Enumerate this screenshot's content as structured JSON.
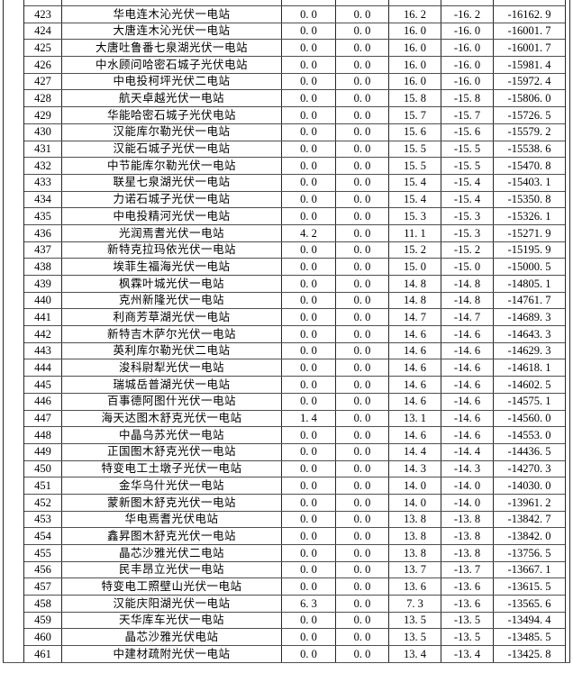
{
  "document": {
    "kind": "power-station-data-table-page",
    "visible_row_range": "423-461",
    "text_color": "#000000",
    "grid_line_color": "#3d3d3d",
    "background_color": "#ffffff"
  },
  "table": {
    "rows": [
      [
        "423",
        "华电连木沁光伏一电站",
        "0. 0",
        "0. 0",
        "16. 2",
        "-16. 2",
        "-16162. 9"
      ],
      [
        "424",
        "大唐连木沁光伏一电站",
        "0. 0",
        "0. 0",
        "16. 0",
        "-16. 0",
        "-16001. 7"
      ],
      [
        "425",
        "大唐吐鲁番七泉湖光伏一电站",
        "0. 0",
        "0. 0",
        "16. 0",
        "-16. 0",
        "-16001. 7"
      ],
      [
        "426",
        "中水顾问哈密石城子光伏电站",
        "0. 0",
        "0. 0",
        "16. 0",
        "-16. 0",
        "-15981. 4"
      ],
      [
        "427",
        "中电投柯坪光伏二电站",
        "0. 0",
        "0. 0",
        "16. 0",
        "-16. 0",
        "-15972. 4"
      ],
      [
        "428",
        "航天卓越光伏一电站",
        "0. 0",
        "0. 0",
        "15. 8",
        "-15. 8",
        "-15806. 0"
      ],
      [
        "429",
        "华能哈密石城子光伏电站",
        "0. 0",
        "0. 0",
        "15. 7",
        "-15. 7",
        "-15726. 5"
      ],
      [
        "430",
        "汉能库尔勒光伏一电站",
        "0. 0",
        "0. 0",
        "15. 6",
        "-15. 6",
        "-15579. 2"
      ],
      [
        "431",
        "汉能石城子光伏一电站",
        "0. 0",
        "0. 0",
        "15. 5",
        "-15. 5",
        "-15538. 6"
      ],
      [
        "432",
        "中节能库尔勒光伏一电站",
        "0. 0",
        "0. 0",
        "15. 5",
        "-15. 5",
        "-15470. 8"
      ],
      [
        "433",
        "联星七泉湖光伏一电站",
        "0. 0",
        "0. 0",
        "15. 4",
        "-15. 4",
        "-15403. 1"
      ],
      [
        "434",
        "力诺石城子光伏一电站",
        "0. 0",
        "0. 0",
        "15. 4",
        "-15. 4",
        "-15350. 8"
      ],
      [
        "435",
        "中电投精河光伏一电站",
        "0. 0",
        "0. 0",
        "15. 3",
        "-15. 3",
        "-15326. 1"
      ],
      [
        "436",
        "光润焉耆光伏一电站",
        "4. 2",
        "0. 0",
        "11. 1",
        "-15. 3",
        "-15271. 9"
      ],
      [
        "437",
        "新特克拉玛依光伏一电站",
        "0. 0",
        "0. 0",
        "15. 2",
        "-15. 2",
        "-15195. 9"
      ],
      [
        "438",
        "埃菲生福海光伏一电站",
        "0. 0",
        "0. 0",
        "15. 0",
        "-15. 0",
        "-15000. 5"
      ],
      [
        "439",
        "枫霖叶城光伏一电站",
        "0. 0",
        "0. 0",
        "14. 8",
        "-14. 8",
        "-14805. 1"
      ],
      [
        "440",
        "克州新隆光伏一电站",
        "0. 0",
        "0. 0",
        "14. 8",
        "-14. 8",
        "-14761. 7"
      ],
      [
        "441",
        "利商芳草湖光伏一电站",
        "0. 0",
        "0. 0",
        "14. 7",
        "-14. 7",
        "-14689. 3"
      ],
      [
        "442",
        "新特吉木萨尔光伏一电站",
        "0. 0",
        "0. 0",
        "14. 6",
        "-14. 6",
        "-14643. 3"
      ],
      [
        "443",
        "英利库尔勒光伏二电站",
        "0. 0",
        "0. 0",
        "14. 6",
        "-14. 6",
        "-14629. 3"
      ],
      [
        "444",
        "浚科尉犁光伏一电站",
        "0. 0",
        "0. 0",
        "14. 6",
        "-14. 6",
        "-14618. 1"
      ],
      [
        "445",
        "瑞城岳普湖光伏一电站",
        "0. 0",
        "0. 0",
        "14. 6",
        "-14. 6",
        "-14602. 5"
      ],
      [
        "446",
        "百事德阿图什光伏一电站",
        "0. 0",
        "0. 0",
        "14. 6",
        "-14. 6",
        "-14575. 1"
      ],
      [
        "447",
        "海天达图木舒克光伏一电站",
        "1. 4",
        "0. 0",
        "13. 1",
        "-14. 6",
        "-14560. 0"
      ],
      [
        "448",
        "中晶乌苏光伏一电站",
        "0. 0",
        "0. 0",
        "14. 6",
        "-14. 6",
        "-14553. 0"
      ],
      [
        "449",
        "正国图木舒克光伏一电站",
        "0. 0",
        "0. 0",
        "14. 4",
        "-14. 4",
        "-14436. 5"
      ],
      [
        "450",
        "特变电工土墩子光伏一电站",
        "0. 0",
        "0. 0",
        "14. 3",
        "-14. 3",
        "-14270. 3"
      ],
      [
        "451",
        "金华乌什光伏一电站",
        "0. 0",
        "0. 0",
        "14. 0",
        "-14. 0",
        "-14030. 0"
      ],
      [
        "452",
        "蒙新图木舒克光伏一电站",
        "0. 0",
        "0. 0",
        "14. 0",
        "-14. 0",
        "-13961. 2"
      ],
      [
        "453",
        "华电焉耆光伏电站",
        "0. 0",
        "0. 0",
        "13. 8",
        "-13. 8",
        "-13842. 7"
      ],
      [
        "454",
        "鑫昇图木舒克光伏一电站",
        "0. 0",
        "0. 0",
        "13. 8",
        "-13. 8",
        "-13842. 0"
      ],
      [
        "455",
        "晶芯沙雅光伏二电站",
        "0. 0",
        "0. 0",
        "13. 8",
        "-13. 8",
        "-13756. 5"
      ],
      [
        "456",
        "民丰昂立光伏一电站",
        "0. 0",
        "0. 0",
        "13. 7",
        "-13. 7",
        "-13667. 1"
      ],
      [
        "457",
        "特变电工照壁山光伏一电站",
        "0. 0",
        "0. 0",
        "13. 6",
        "-13. 6",
        "-13615. 5"
      ],
      [
        "458",
        "汉能庆阳湖光伏一电站",
        "6. 3",
        "0. 0",
        "7. 3",
        "-13. 6",
        "-13565. 6"
      ],
      [
        "459",
        "天华库车光伏一电站",
        "0. 0",
        "0. 0",
        "13. 5",
        "-13. 5",
        "-13494. 4"
      ],
      [
        "460",
        "晶芯沙雅光伏电站",
        "0. 0",
        "0. 0",
        "13. 5",
        "-13. 5",
        "-13485. 5"
      ],
      [
        "461",
        "中建材疏附光伏一电站",
        "0. 0",
        "0. 0",
        "13. 4",
        "-13. 4",
        "-13425. 8"
      ]
    ]
  }
}
